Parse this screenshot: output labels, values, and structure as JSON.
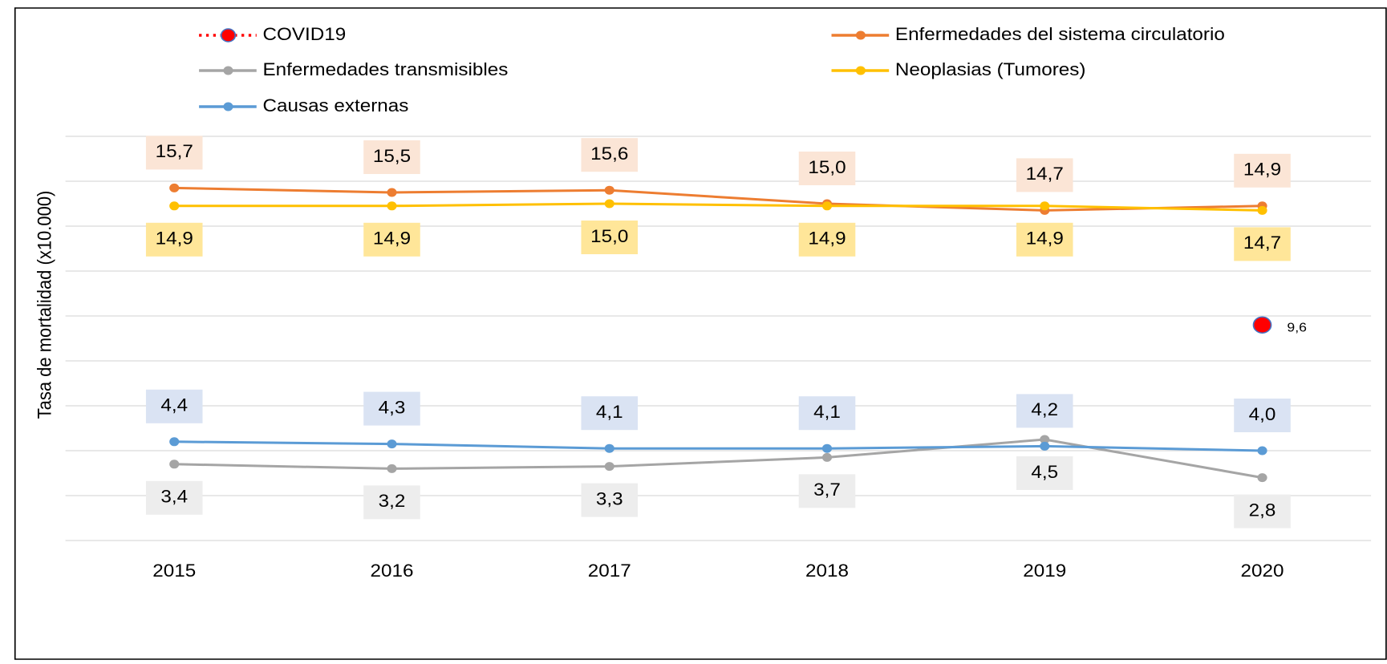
{
  "chart_data": {
    "type": "line",
    "ylabel": "Tasa de mortalidad (x10.000)",
    "categories": [
      "2015",
      "2016",
      "2017",
      "2018",
      "2019",
      "2020"
    ],
    "ylim": [
      0,
      18
    ],
    "yticks": [
      0,
      2,
      4,
      6,
      8,
      10,
      12,
      14,
      16,
      18
    ],
    "grid": true,
    "series": [
      {
        "name": "COVID19",
        "color": "#ff0000",
        "values": [
          null,
          null,
          null,
          null,
          null,
          9.6
        ],
        "value_labels": [
          null,
          null,
          null,
          null,
          null,
          "9,6"
        ]
      },
      {
        "name": "Enfermedades del sistema circulatorio",
        "color": "#ed7d31",
        "values": [
          15.7,
          15.5,
          15.6,
          15.0,
          14.7,
          14.9
        ],
        "value_labels": [
          "15,7",
          "15,5",
          "15,6",
          "15,0",
          "14,7",
          "14,9"
        ]
      },
      {
        "name": "Enfermedades transmisibles",
        "color": "#a5a5a5",
        "values": [
          3.4,
          3.2,
          3.3,
          3.7,
          4.5,
          2.8
        ],
        "value_labels": [
          "3,4",
          "3,2",
          "3,3",
          "3,7",
          "4,5",
          "2,8"
        ]
      },
      {
        "name": "Neoplasias (Tumores)",
        "color": "#ffc000",
        "values": [
          14.9,
          14.9,
          15.0,
          14.9,
          14.9,
          14.7
        ],
        "value_labels": [
          "14,9",
          "14,9",
          "15,0",
          "14,9",
          "14,9",
          "14,7"
        ]
      },
      {
        "name": "Causas externas",
        "color": "#5b9bd5",
        "values": [
          4.4,
          4.3,
          4.1,
          4.1,
          4.2,
          4.0
        ],
        "value_labels": [
          "4,4",
          "4,3",
          "4,1",
          "4,1",
          "4,2",
          "4,0"
        ]
      }
    ]
  }
}
